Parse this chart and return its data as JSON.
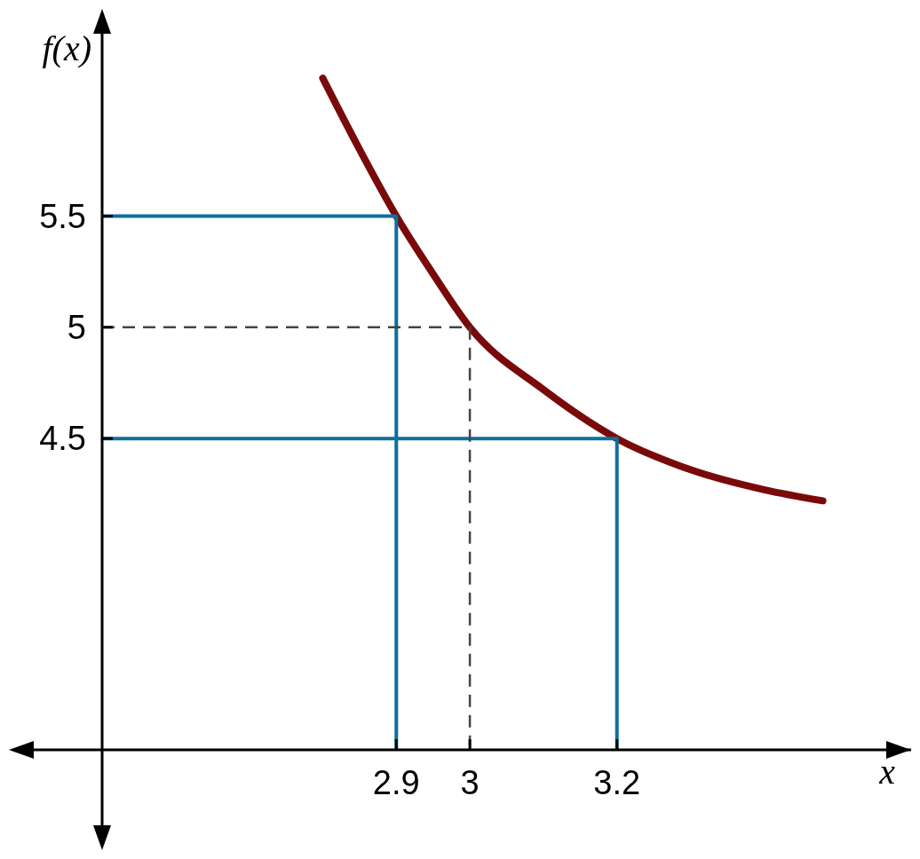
{
  "chart_data": {
    "type": "line",
    "xlabel": "x",
    "ylabel": "f(x)",
    "xlim": [
      2.5,
      3.6
    ],
    "ylim": [
      3.1,
      6.4
    ],
    "xticks": [
      2.9,
      3,
      3.2
    ],
    "yticks": [
      4.5,
      5,
      5.5
    ],
    "series": [
      {
        "color": "#7a0a0a",
        "x": [
          2.8,
          2.85,
          2.9,
          2.95,
          3,
          3.1,
          3.2,
          3.3,
          3.4,
          3.48
        ],
        "values": [
          6.12,
          5.8,
          5.5,
          5.24,
          5.0,
          4.72,
          4.5,
          4.36,
          4.27,
          4.22
        ]
      },
      {
        "color": "#0e6f9b",
        "x": [
          2.5,
          2.9,
          2.9
        ],
        "values": [
          5.5,
          5.5,
          3.1
        ]
      },
      {
        "color": "#0e6f9b",
        "x": [
          2.5,
          3.2,
          3.2
        ],
        "values": [
          4.5,
          4.5,
          3.1
        ]
      },
      {
        "color": "#444444",
        "line_style": "dashed",
        "x": [
          2.5,
          3,
          3
        ],
        "values": [
          5,
          5,
          3.1
        ]
      }
    ]
  }
}
